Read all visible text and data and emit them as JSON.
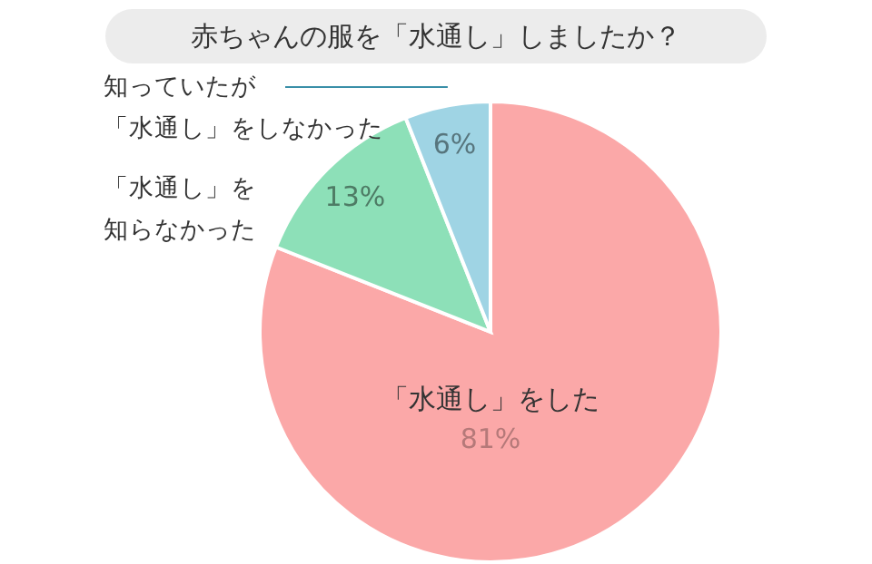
{
  "chart_data": {
    "type": "pie",
    "title": "赤ちゃんの服を「水通し」しましたか？",
    "categories": [
      "「水通し」をした",
      "「水通し」を知らなかった",
      "知っていたが「水通し」をしなかった"
    ],
    "values": [
      81,
      13,
      6
    ],
    "colors": [
      "#fba8a8",
      "#8de0b8",
      "#9fd4e4"
    ],
    "value_labels": [
      "81%",
      "13%",
      "6%"
    ]
  }
}
